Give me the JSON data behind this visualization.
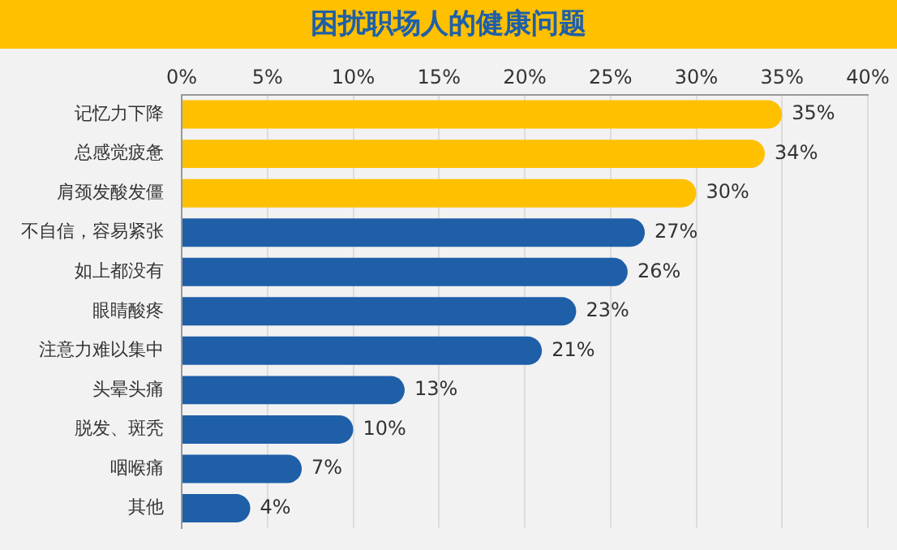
{
  "chart_data": {
    "type": "bar",
    "orientation": "horizontal",
    "title": "困扰职场人的健康问题",
    "categories": [
      "记忆力下降",
      "总感觉疲惫",
      "肩颈发酸发僵",
      "不自信，容易紧张",
      "如上都没有",
      "眼睛酸疼",
      "注意力难以集中",
      "头晕头痛",
      "脱发、斑秃",
      "咽喉痛",
      "其他"
    ],
    "values": [
      35,
      34,
      30,
      27,
      26,
      23,
      21,
      13,
      10,
      7,
      4
    ],
    "value_labels": [
      "35%",
      "34%",
      "30%",
      "27%",
      "26%",
      "23%",
      "21%",
      "13%",
      "10%",
      "7%",
      "4%"
    ],
    "colors": [
      "#ffc000",
      "#ffc000",
      "#ffc000",
      "#1f5fa8",
      "#1f5fa8",
      "#1f5fa8",
      "#1f5fa8",
      "#1f5fa8",
      "#1f5fa8",
      "#1f5fa8",
      "#1f5fa8"
    ],
    "xlim": [
      0,
      40
    ],
    "xticks": [
      {
        "value": 0,
        "label": "0%"
      },
      {
        "value": 5,
        "label": "5%"
      },
      {
        "value": 10,
        "label": "10%"
      },
      {
        "value": 15,
        "label": "15%"
      },
      {
        "value": 20,
        "label": "20%"
      },
      {
        "value": 25,
        "label": "25%"
      },
      {
        "value": 30,
        "label": "30%"
      },
      {
        "value": 35,
        "label": "35%"
      },
      {
        "value": 40,
        "label": "40%"
      }
    ],
    "grid": "x"
  }
}
